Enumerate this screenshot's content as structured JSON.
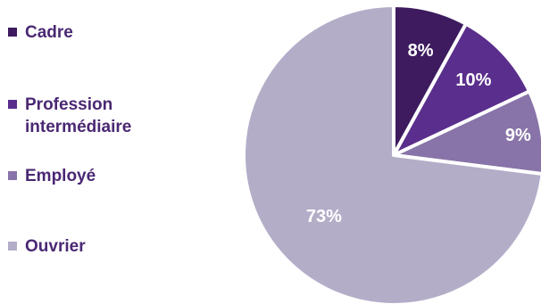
{
  "chart_data": {
    "type": "pie",
    "start_angle_deg": 0,
    "direction": "clockwise",
    "slices": [
      {
        "label": "Cadre",
        "value": 8,
        "value_label": "8%",
        "color": "#3d1b5e"
      },
      {
        "label": "Profession intermédiaire",
        "value": 10,
        "value_label": "10%",
        "color": "#5a2e8c"
      },
      {
        "label": "Employé",
        "value": 9,
        "value_label": "9%",
        "color": "#8874a8"
      },
      {
        "label": "Ouvrier",
        "value": 73,
        "value_label": "73%",
        "color": "#b4adc8"
      }
    ],
    "legend_position": "left",
    "legend": [
      "Cadre",
      "Profession intermédiaire",
      "Employé",
      "Ouvrier"
    ]
  }
}
